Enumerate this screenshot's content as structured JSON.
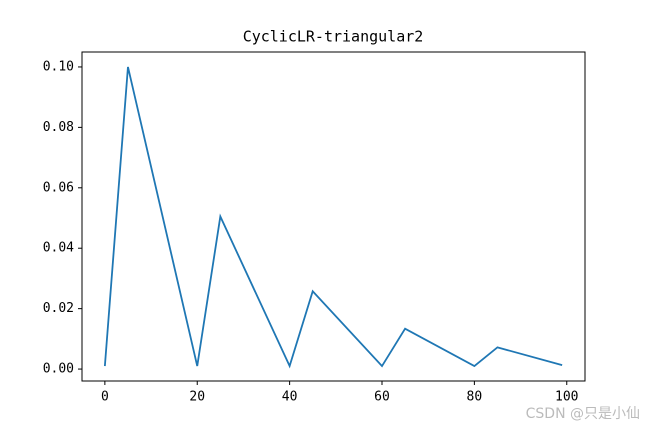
{
  "chart_data": {
    "type": "line",
    "title": "CyclicLR-triangular2",
    "x": [
      0,
      5,
      20,
      25,
      40,
      45,
      60,
      65,
      80,
      85,
      99
    ],
    "series": [
      {
        "color": "#1f77b4",
        "values": [
          0.001,
          0.1,
          0.001,
          0.0505,
          0.001,
          0.02575,
          0.001,
          0.013375,
          0.001,
          0.0071875,
          0.0013
        ]
      }
    ],
    "xlim": [
      -4.95,
      103.95
    ],
    "xticks": [
      0,
      20,
      40,
      60,
      80,
      100
    ],
    "ylim": [
      -0.00395,
      0.10495
    ],
    "yticks": [
      {
        "value": 0,
        "label": "0.00"
      },
      {
        "value": 0.02,
        "label": "0.02"
      },
      {
        "value": 0.04,
        "label": "0.04"
      },
      {
        "value": 0.06,
        "label": "0.06"
      },
      {
        "value": 0.08,
        "label": "0.08"
      },
      {
        "value": 0.1,
        "label": "0.10"
      }
    ],
    "watermark": "CSDN @只是小仙"
  }
}
